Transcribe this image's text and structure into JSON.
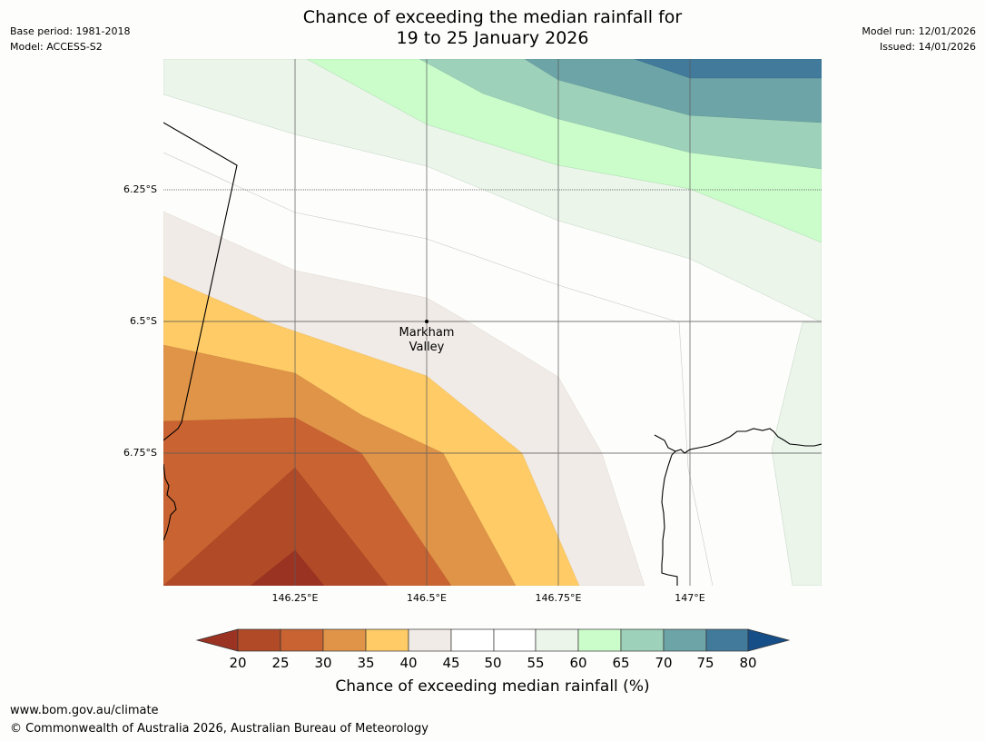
{
  "header": {
    "base_period": "Base period: 1981-2018",
    "model": "Model: ACCESS-S2",
    "model_run": "Model run: 12/01/2026",
    "issued": "Issued: 14/01/2026",
    "title_line1": "Chance of exceeding the median rainfall for",
    "title_line2": "19 to 25 January 2026"
  },
  "map": {
    "lat_labels": [
      "6.25°S",
      "6.5°S",
      "6.75°S"
    ],
    "lon_labels": [
      "146.25°E",
      "146.5°E",
      "146.75°E",
      "147°E"
    ],
    "place": {
      "name_line1": "Markham",
      "name_line2": "Valley",
      "lat": -6.5,
      "lon": 146.5
    }
  },
  "colorbar": {
    "ticks": [
      "20",
      "25",
      "30",
      "35",
      "40",
      "45",
      "50",
      "55",
      "60",
      "65",
      "70",
      "75",
      "80"
    ],
    "colors": {
      "below_20": "#9b3322",
      "20_25": "#b14a27",
      "25_30": "#c96332",
      "30_35": "#e09448",
      "35_40": "#fecb66",
      "40_45": "#f0ebe6",
      "45_55": "#ffffff",
      "55_60": "#ebf5ea",
      "60_65": "#cbfdcb",
      "65_70": "#9dd1b9",
      "70_75": "#6da4a7",
      "75_80": "#417a9a",
      "above_80": "#164f88"
    },
    "label": "Chance of exceeding median rainfall (%)"
  },
  "footer": {
    "website": "www.bom.gov.au/climate",
    "copyright": "© Commonwealth of Australia 2026, Australian Bureau of Meteorology"
  }
}
